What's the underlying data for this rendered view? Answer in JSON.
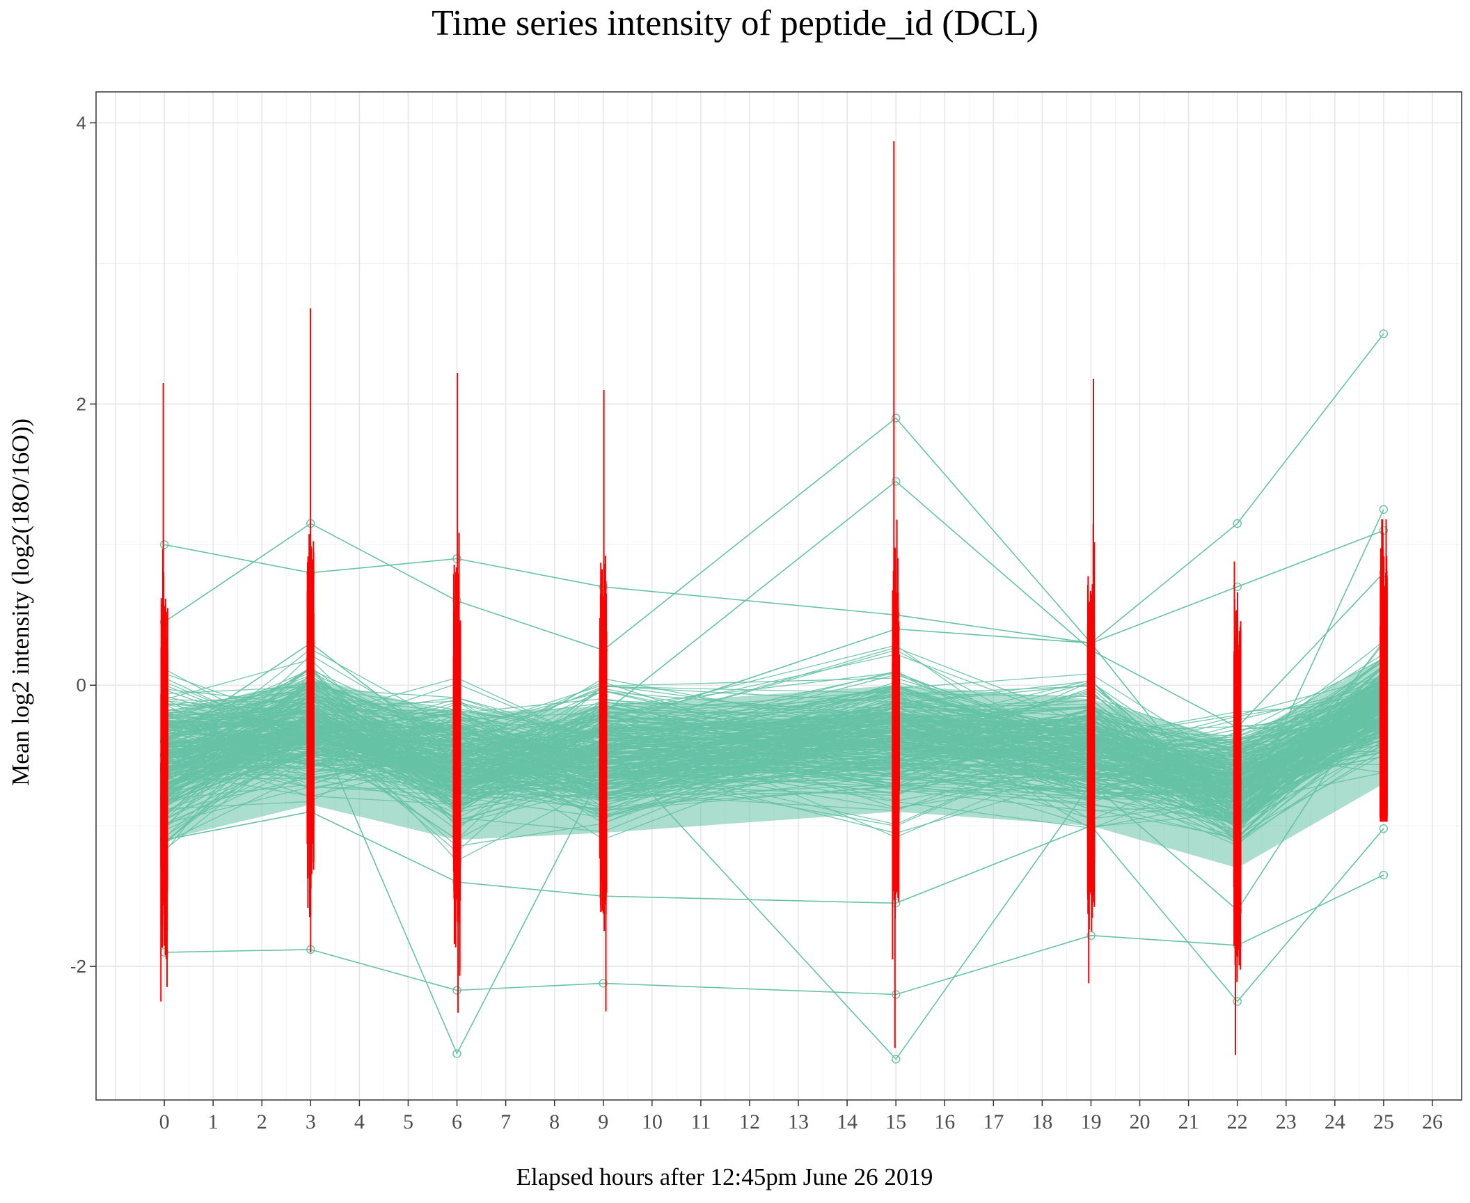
{
  "chart_data": {
    "type": "line",
    "title": "Time series intensity of peptide_id (DCL)",
    "xlabel": "Elapsed hours after 12:45pm June 26 2019",
    "ylabel": "Mean log2 intensity (log2(18O/16O))",
    "x": [
      0,
      3,
      6,
      9,
      15,
      19,
      22,
      25
    ],
    "x_ticks": [
      "0",
      "1",
      "2",
      "3",
      "4",
      "5",
      "6",
      "7",
      "8",
      "9",
      "10",
      "11",
      "12",
      "13",
      "14",
      "15",
      "16",
      "17",
      "18",
      "19",
      "20",
      "21",
      "22",
      "23",
      "24",
      "25",
      "26"
    ],
    "y_ticks": [
      "-2",
      "0",
      "2",
      "4"
    ],
    "xlim": [
      -1.4,
      26.6
    ],
    "ylim": [
      -2.95,
      4.22
    ],
    "grid": true,
    "line_color": "#66c2a5",
    "error_bar_color": "#ff0000",
    "representative_series": [
      {
        "values": [
          1.0,
          0.8,
          0.9,
          0.7,
          0.5,
          0.3,
          0.7,
          1.1
        ]
      },
      {
        "values": [
          -1.9,
          -1.88,
          -2.17,
          -2.12,
          -2.2,
          -1.78,
          -1.85,
          -1.35
        ]
      },
      {
        "values": [
          0.45,
          1.15,
          0.6,
          0.25,
          1.9,
          0.3,
          1.15,
          2.5
        ]
      },
      {
        "values": [
          -0.4,
          0.3,
          -0.5,
          -0.2,
          1.45,
          0.25,
          -0.3,
          0.8
        ]
      },
      {
        "values": [
          -0.8,
          -0.2,
          -2.62,
          -0.6,
          -0.4,
          -0.6,
          -1.0,
          -0.1
        ]
      },
      {
        "values": [
          -0.6,
          -0.3,
          -0.7,
          -0.4,
          -2.66,
          -0.7,
          -1.6,
          0.0
        ]
      },
      {
        "values": [
          -1.1,
          -0.9,
          -1.4,
          -1.5,
          -1.55,
          -1.0,
          -2.25,
          -1.02
        ]
      },
      {
        "values": [
          -0.5,
          -0.4,
          -0.6,
          -0.3,
          0.4,
          0.3,
          -1.0,
          1.25
        ]
      }
    ],
    "error_bar_ranges": [
      {
        "x": 0,
        "low": -2.25,
        "high": 2.15
      },
      {
        "x": 3,
        "low": -1.9,
        "high": 2.68
      },
      {
        "x": 6,
        "low": -2.33,
        "high": 2.22
      },
      {
        "x": 9,
        "low": -2.32,
        "high": 2.1
      },
      {
        "x": 15,
        "low": -2.58,
        "high": 3.87
      },
      {
        "x": 19,
        "low": -2.12,
        "high": 2.18
      },
      {
        "x": 22,
        "low": -2.63,
        "high": 0.88
      },
      {
        "x": 25,
        "low": -0.97,
        "high": 1.18
      }
    ]
  }
}
